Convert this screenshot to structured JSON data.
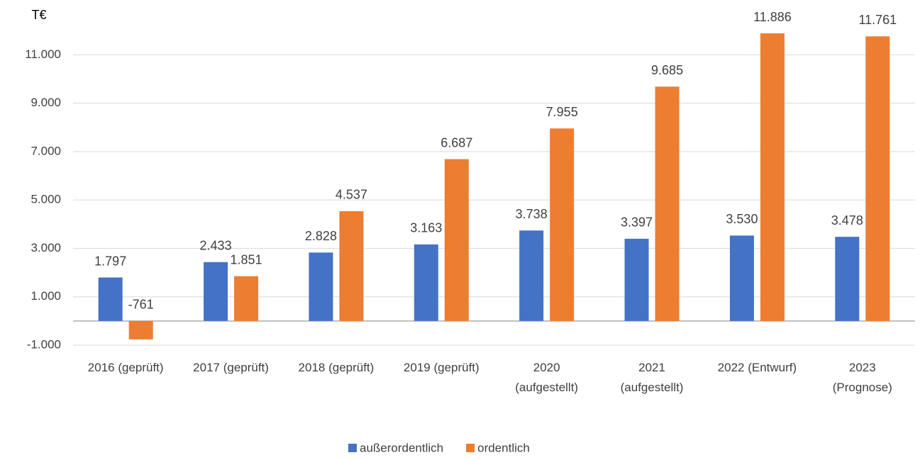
{
  "chart_data": {
    "type": "bar",
    "y_label": "T€",
    "categories": [
      "2016 (geprüft)",
      "2017 (geprüft)",
      "2018 (geprüft)",
      "2019 (geprüft)",
      "2020\n(aufgestellt)",
      "2021\n(aufgestellt)",
      "2022 (Entwurf)",
      "2023\n(Prognose)"
    ],
    "series": [
      {
        "name": "außerordentlich",
        "color": "#4472c4",
        "values": [
          1797,
          2433,
          2828,
          3163,
          3738,
          3397,
          3530,
          3478
        ],
        "value_labels": [
          "1.797",
          "2.433",
          "2.828",
          "3.163",
          "3.738",
          "3.397",
          "3.530",
          "3.478"
        ]
      },
      {
        "name": "ordentlich",
        "color": "#ed7d31",
        "values": [
          -761,
          1851,
          4537,
          6687,
          7955,
          9685,
          11886,
          11761
        ],
        "value_labels": [
          "-761",
          "1.851",
          "4.537",
          "6.687",
          "7.955",
          "9.685",
          "11.886",
          "11.761"
        ]
      }
    ],
    "ylim": [
      -1000,
      13000
    ],
    "yticks": [
      {
        "value": -1000,
        "label": "-1.000"
      },
      {
        "value": 1000,
        "label": "1.000"
      },
      {
        "value": 3000,
        "label": "3.000"
      },
      {
        "value": 5000,
        "label": "5.000"
      },
      {
        "value": 7000,
        "label": "7.000"
      },
      {
        "value": 9000,
        "label": "9.000"
      },
      {
        "value": 11000,
        "label": "11.000"
      }
    ],
    "grid": true,
    "legend": "bottom"
  }
}
